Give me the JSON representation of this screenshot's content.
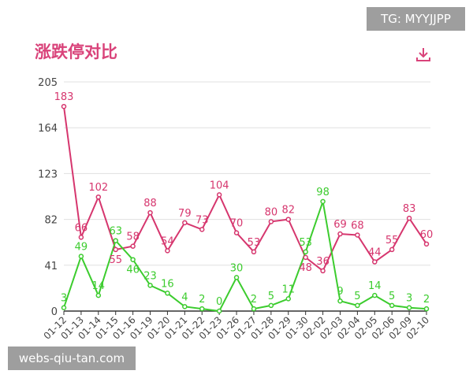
{
  "header": {
    "title": "涨跌停对比",
    "download_icon": "download-icon"
  },
  "overlays": {
    "tg_label": "TG: MYYJJPP",
    "site_label": "webs-qiu-tan.com"
  },
  "colors": {
    "limit_up": "#d6366e",
    "limit_down": "#3ccc2e",
    "title": "#d9437a"
  },
  "chart_data": {
    "type": "line",
    "title": "涨跌停对比",
    "categories": [
      "01-12",
      "01-13",
      "01-14",
      "01-15",
      "01-16",
      "01-19",
      "01-20",
      "01-21",
      "01-22",
      "01-23",
      "01-26",
      "01-27",
      "01-28",
      "01-29",
      "01-30",
      "02-02",
      "02-03",
      "02-04",
      "02-05",
      "02-06",
      "02-09",
      "02-10"
    ],
    "series": [
      {
        "color": "#d6366e",
        "values": [
          183,
          66,
          102,
          55,
          58,
          88,
          54,
          79,
          73,
          104,
          70,
          53,
          80,
          82,
          48,
          36,
          69,
          68,
          44,
          55,
          83,
          60
        ]
      },
      {
        "color": "#3ccc2e",
        "values": [
          3,
          49,
          14,
          63,
          46,
          23,
          16,
          4,
          2,
          0,
          30,
          2,
          5,
          11,
          53,
          98,
          9,
          5,
          14,
          5,
          3,
          2
        ]
      }
    ],
    "yticks": [
      0,
      41,
      82,
      123,
      164,
      205
    ],
    "ylim": [
      0,
      205
    ],
    "grid": true,
    "data_labels": true
  }
}
